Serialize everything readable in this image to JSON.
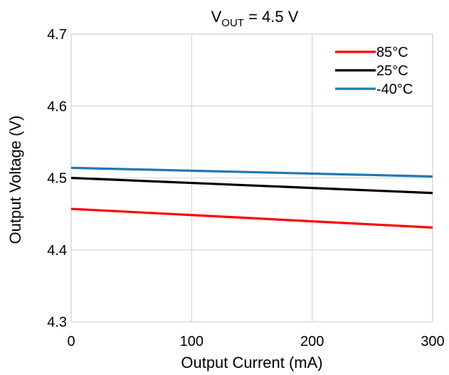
{
  "chart_data": {
    "type": "line",
    "title": {
      "main": "V",
      "sub": "OUT",
      "rest": " = 4.5 V"
    },
    "xlabel": "Output Current (mA)",
    "ylabel": "Output Voltage (V)",
    "xlim": [
      0,
      300
    ],
    "ylim": [
      4.3,
      4.7
    ],
    "xticks": [
      "0",
      "100",
      "200",
      "300"
    ],
    "yticks": [
      "4.3",
      "4.4",
      "4.5",
      "4.6",
      "4.7"
    ],
    "xtick_values": [
      0,
      100,
      200,
      300
    ],
    "ytick_values": [
      4.3,
      4.4,
      4.5,
      4.6,
      4.7
    ],
    "grid": true,
    "legend_position": "top-right",
    "series": [
      {
        "name": "85°C",
        "color": "#ff0000",
        "x": [
          0,
          300
        ],
        "y": [
          4.457,
          4.431
        ]
      },
      {
        "name": "25°C",
        "color": "#000000",
        "x": [
          0,
          300
        ],
        "y": [
          4.5,
          4.479
        ]
      },
      {
        "name": "-40°C",
        "color": "#1f77b4",
        "x": [
          0,
          300
        ],
        "y": [
          4.514,
          4.502
        ]
      }
    ]
  }
}
